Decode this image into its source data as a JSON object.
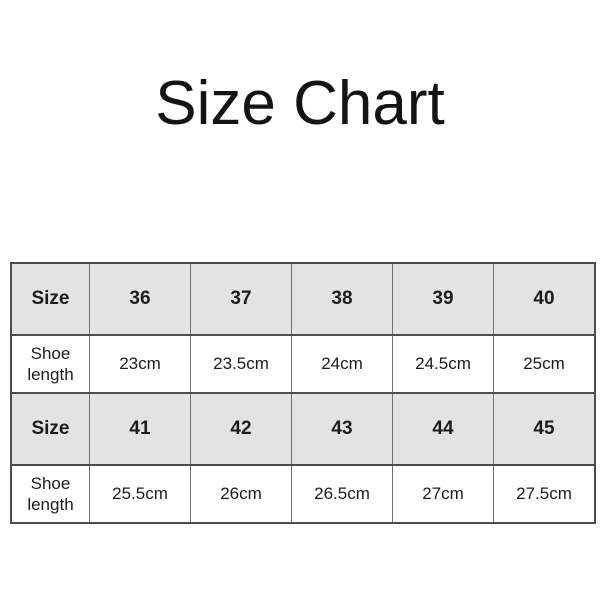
{
  "chart_data": {
    "type": "table",
    "title": "Size Chart",
    "rows": [
      [
        "Size",
        "36",
        "37",
        "38",
        "39",
        "40"
      ],
      [
        "Shoe length",
        "23cm",
        "23.5cm",
        "24cm",
        "24.5cm",
        "25cm"
      ],
      [
        "Size",
        "41",
        "42",
        "43",
        "44",
        "45"
      ],
      [
        "Shoe length",
        "25.5cm",
        "26cm",
        "26.5cm",
        "27cm",
        "27.5cm"
      ]
    ],
    "layout": {
      "header_rows": [
        0,
        2
      ],
      "grid": true,
      "header_row_bold": true
    }
  },
  "colors": {
    "background": "#ffffff",
    "header_row_bg": "#e3e3e3",
    "border_outer": "#4c4c4c",
    "border_inner": "#707070",
    "text": "#1c1c1c"
  }
}
